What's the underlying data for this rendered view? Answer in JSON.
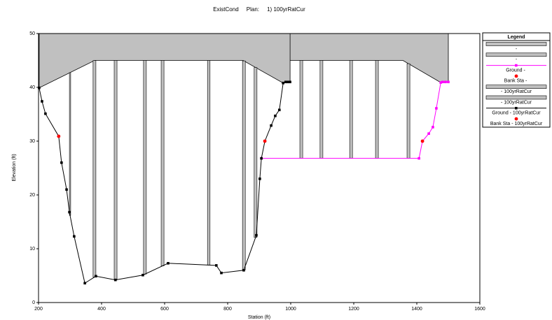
{
  "chart_data": {
    "type": "line",
    "title": "ExistCond     Plan:     1) 100yrRatCur",
    "x_label": "Station (ft)",
    "y_label": "Elevation (ft)",
    "legend_title": "Legend",
    "xlim": [
      200,
      1600
    ],
    "xticks": [
      200,
      400,
      600,
      800,
      1000,
      1200,
      1400,
      1600
    ],
    "ylim": [
      0,
      50
    ],
    "yticks": [
      0,
      10,
      20,
      30,
      40,
      50
    ],
    "legend": "right",
    "series": [
      {
        "name": "-",
        "kind": "deck",
        "color": "#c0c0c0",
        "top": 50,
        "x": [
          998,
          1356,
          1476,
          1500
        ],
        "values": [
          45,
          45,
          40.9,
          41.0
        ]
      },
      {
        "name": "-",
        "kind": "pier",
        "color": "#c0c0c0",
        "ground": 2,
        "left": [
          1029,
          1093,
          1187,
          1269,
          1369
        ],
        "right": [
          1038,
          1102,
          1196,
          1278,
          1378
        ]
      },
      {
        "name": "Ground - ",
        "kind": "line",
        "color": "#ff00ff",
        "x": [
          907,
          1407,
          1418,
          1438,
          1451,
          1462,
          1476,
          1482,
          1491,
          1500
        ],
        "values": [
          26.8,
          26.8,
          30.0,
          31.4,
          32.6,
          36.1,
          40.9,
          41.0,
          41.0,
          41.0
        ]
      },
      {
        "name": "Bank Sta - ",
        "kind": "points",
        "color": "#ff0000",
        "x": [
          1418
        ],
        "values": [
          30.0
        ]
      },
      {
        "name": "- 100yrRatCur",
        "kind": "deck",
        "color": "#c0c0c0",
        "top": 50,
        "x": [
          202,
          378,
          849,
          976,
          998
        ],
        "values": [
          39.9,
          45,
          45,
          40.8,
          41.0
        ]
      },
      {
        "name": "- 100yrRatCur",
        "kind": "pier",
        "color": "#c0c0c0",
        "ground": 6,
        "left": [
          298,
          373,
          440,
          533,
          589,
          736,
          847,
          884
        ],
        "right": [
          302,
          382,
          449,
          542,
          598,
          744,
          856,
          893
        ]
      },
      {
        "name": "Ground - 100yrRatCur",
        "kind": "line",
        "color": "#000000",
        "x": [
          202,
          211,
          222,
          264,
          273,
          289,
          298,
          313,
          347,
          382,
          444,
          531,
          611,
          764,
          780,
          851,
          891,
          902,
          907,
          918,
          938,
          951,
          964,
          976,
          984,
          991,
          998
        ],
        "values": [
          39.9,
          37.4,
          35.1,
          30.9,
          26.0,
          21.0,
          16.8,
          12.3,
          3.6,
          4.9,
          4.2,
          5.1,
          7.3,
          6.9,
          5.5,
          6.0,
          12.5,
          23.0,
          26.8,
          30.0,
          32.9,
          34.7,
          35.8,
          40.8,
          41.0,
          41.0,
          41.0
        ]
      },
      {
        "name": "Bank Sta - 100yrRatCur",
        "kind": "points",
        "color": "#ff0000",
        "x": [
          264,
          918
        ],
        "values": [
          30.9,
          30.0
        ]
      }
    ]
  }
}
